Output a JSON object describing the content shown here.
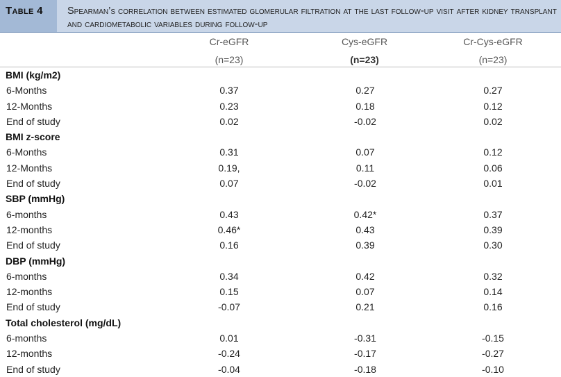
{
  "caption": {
    "label": "Table 4",
    "title": "Spearman’s correlation between estimated glomerular filtration at the last follow-up visit after kidney transplant and cardiometabolic variables during follow-up"
  },
  "columns": [
    {
      "name": "Cr-eGFR",
      "n": "(n=23)"
    },
    {
      "name": "Cys-eGFR",
      "n": "(n=23)"
    },
    {
      "name": "Cr-Cys-eGFR",
      "n": "(n=23)"
    }
  ],
  "sections": [
    {
      "title": "BMI (kg/m2)",
      "rows": [
        {
          "label": "6-Months",
          "values": [
            "0.37",
            "0.27",
            "0.27"
          ]
        },
        {
          "label": "12-Months",
          "values": [
            "0.23",
            "0.18",
            "0.12"
          ]
        },
        {
          "label": "End of study",
          "values": [
            "0.02",
            "-0.02",
            "0.02"
          ]
        }
      ]
    },
    {
      "title": "BMI z-score",
      "rows": [
        {
          "label": "6-Months",
          "values": [
            "0.31",
            "0.07",
            "0.12"
          ]
        },
        {
          "label": "12-Months",
          "values": [
            "0.19,",
            "0.11",
            "0.06"
          ]
        },
        {
          "label": "End of study",
          "values": [
            "0.07",
            "-0.02",
            "0.01"
          ]
        }
      ]
    },
    {
      "title": "SBP (mmHg)",
      "rows": [
        {
          "label": "6-months",
          "values": [
            "0.43",
            "0.42*",
            "0.37"
          ]
        },
        {
          "label": "12-months",
          "values": [
            "0.46*",
            "0.43",
            "0.39"
          ]
        },
        {
          "label": "End of study",
          "values": [
            "0.16",
            "0.39",
            "0.30"
          ]
        }
      ]
    },
    {
      "title": "DBP (mmHg)",
      "rows": [
        {
          "label": "6-months",
          "values": [
            "0.34",
            "0.42",
            "0.32"
          ]
        },
        {
          "label": "12-months",
          "values": [
            "0.15",
            "0.07",
            "0.14"
          ]
        },
        {
          "label": "End of study",
          "values": [
            "-0.07",
            "0.21",
            "0.16"
          ]
        }
      ]
    },
    {
      "title": "Total cholesterol (mg/dL)",
      "rows": [
        {
          "label": "6-months",
          "values": [
            "0.01",
            "-0.31",
            "-0.15"
          ]
        },
        {
          "label": "12-months",
          "values": [
            "-0.24",
            "-0.17",
            "-0.27"
          ]
        },
        {
          "label": "End of study",
          "values": [
            "-0.04",
            "-0.18",
            "-0.10"
          ]
        }
      ]
    }
  ]
}
